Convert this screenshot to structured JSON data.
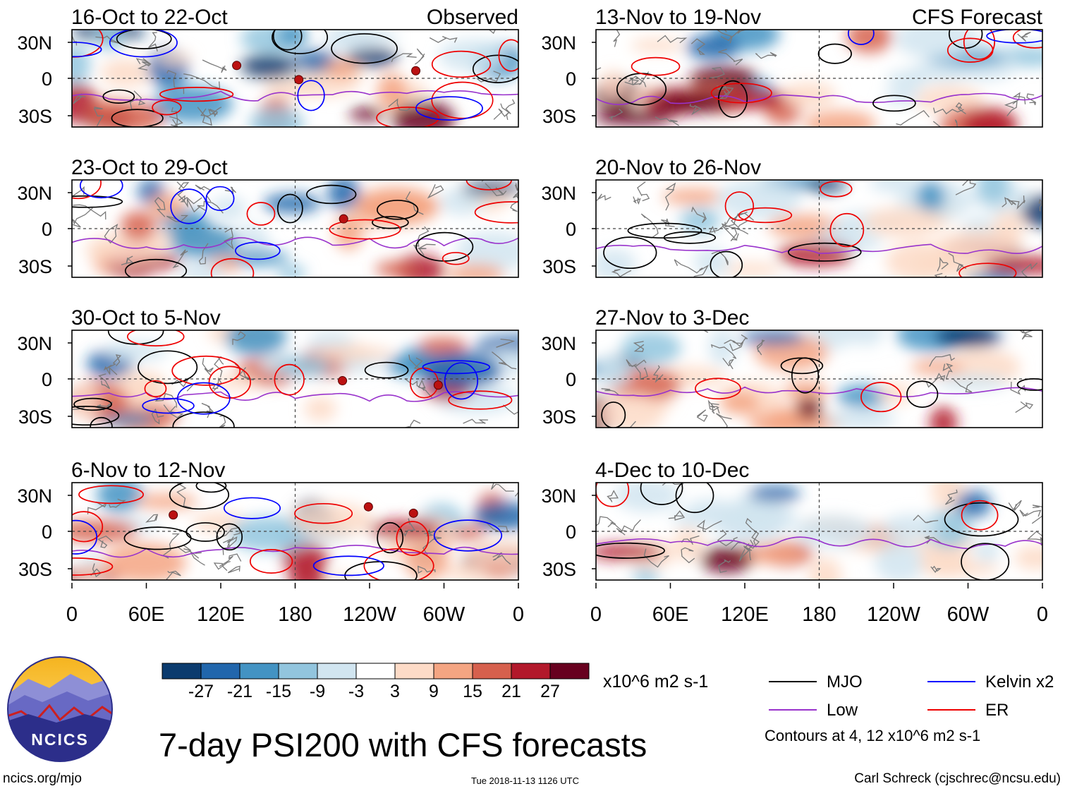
{
  "title": "7-day PSI200 with CFS forecasts",
  "source_url": "ncics.org/mjo",
  "timestamp": "Tue 2018-11-13 1126 UTC",
  "author": "Carl Schreck (cjschrec@ncsu.edu)",
  "logo_text": "NCICS",
  "labels": {
    "observed": "Observed",
    "forecast": "CFS Forecast"
  },
  "colorbar": {
    "units": "x10^6 m2 s-1",
    "ticks": [
      "-27",
      "-21",
      "-15",
      "-9",
      "-3",
      "3",
      "9",
      "15",
      "21",
      "27"
    ],
    "colors": [
      "#0b3b6e",
      "#2166ac",
      "#4393c3",
      "#92c5de",
      "#d1e5f0",
      "#ffffff",
      "#fddbc7",
      "#f4a582",
      "#d6604d",
      "#b2182b",
      "#67001f"
    ]
  },
  "legend": {
    "items": [
      {
        "label": "MJO",
        "color": "#000000"
      },
      {
        "label": "Kelvin x2",
        "color": "#0000ff"
      },
      {
        "label": "Low",
        "color": "#9933cc"
      },
      {
        "label": "ER",
        "color": "#ee0000"
      }
    ],
    "contours_note": "Contours at 4, 12 x10^6 m2 s-1"
  },
  "axes": {
    "x_ticks": [
      "0",
      "60E",
      "120E",
      "180",
      "120W",
      "60W",
      "0"
    ],
    "y_ticks": [
      "30N",
      "0",
      "30S"
    ]
  },
  "panels": [
    {
      "period": "16-Oct to 22-Oct",
      "kind": "observed"
    },
    {
      "period": "23-Oct to 29-Oct",
      "kind": "observed"
    },
    {
      "period": "30-Oct to 5-Nov",
      "kind": "observed"
    },
    {
      "period": "6-Nov to 12-Nov",
      "kind": "observed"
    },
    {
      "period": "13-Nov to 19-Nov",
      "kind": "forecast"
    },
    {
      "period": "20-Nov to 26-Nov",
      "kind": "forecast"
    },
    {
      "period": "27-Nov to 3-Dec",
      "kind": "forecast"
    },
    {
      "period": "4-Dec to 10-Dec",
      "kind": "forecast"
    }
  ]
}
